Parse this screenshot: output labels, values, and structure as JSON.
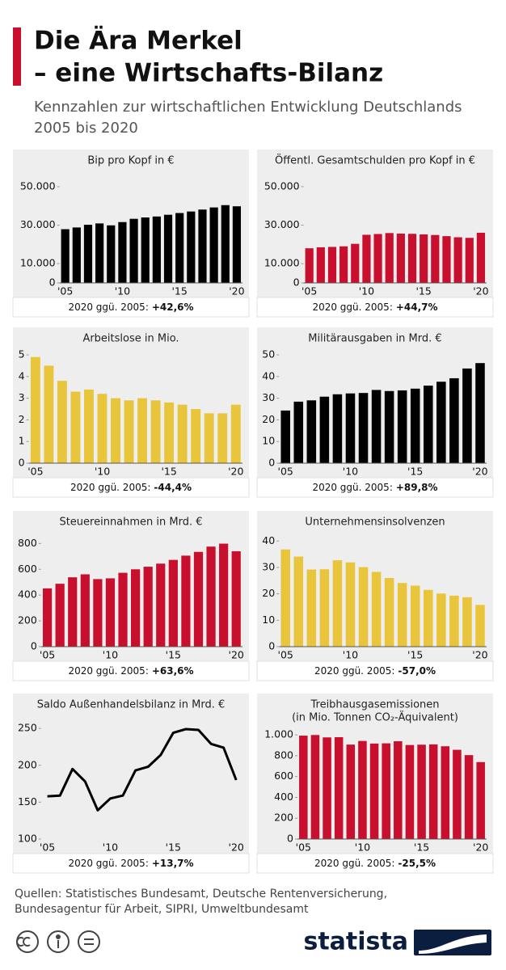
{
  "title": [
    "Die Ära Merkel",
    "– eine Wirtschafts-Bilanz"
  ],
  "subtitle": [
    "Kennzahlen zur wirtschaftlichen Entwicklung Deutschlands",
    "2005 bis 2020"
  ],
  "source": [
    "Quellen: Statistisches Bundesamt, Deutsche Rentenversicherung,",
    "Bundesagentur für Arbeit, SIPRI, Umweltbundesamt"
  ],
  "brand": "statista",
  "chart_data": [
    {
      "type": "bar",
      "title": "Bip pro Kopf in €",
      "color": "#000000",
      "categories": [
        "'05",
        null,
        null,
        null,
        null,
        "'10",
        null,
        null,
        null,
        null,
        "'15",
        null,
        null,
        null,
        null,
        "'20"
      ],
      "values": [
        27900,
        28800,
        30200,
        30900,
        29900,
        31600,
        33300,
        34000,
        34500,
        35400,
        36300,
        37100,
        38100,
        39200,
        40400,
        39800
      ],
      "ylim": [
        0,
        55000
      ],
      "yticks": [
        0,
        {
          "value": 10000,
          "label": "10.000"
        },
        {
          "value": 30000,
          "label": "30.000"
        },
        {
          "value": 50000,
          "label": "50.000"
        }
      ],
      "note_label": "2020 ggü. 2005:",
      "note_value": "+42,6%"
    },
    {
      "type": "bar",
      "title": "Öffentl. Gesamtschulden pro Kopf in €",
      "color": "#c8102e",
      "categories": [
        "'05",
        null,
        null,
        null,
        null,
        "'10",
        null,
        null,
        null,
        null,
        "'15",
        null,
        null,
        null,
        null,
        "'20"
      ],
      "values": [
        18000,
        18500,
        18700,
        19000,
        20300,
        25000,
        25400,
        25900,
        25600,
        25500,
        25200,
        24900,
        24300,
        23700,
        23400,
        26050
      ],
      "ylim": [
        0,
        55000
      ],
      "yticks": [
        0,
        {
          "value": 10000,
          "label": "10.000"
        },
        {
          "value": 30000,
          "label": "30.000"
        },
        {
          "value": 50000,
          "label": "50.000"
        }
      ],
      "note_label": "2020 ggü. 2005:",
      "note_value": "+44,7%"
    },
    {
      "type": "bar",
      "title": "Arbeitslose in Mio.",
      "color": "#e8c53a",
      "categories": [
        "'05",
        null,
        null,
        null,
        null,
        "'10",
        null,
        null,
        null,
        null,
        "'15",
        null,
        null,
        null,
        null,
        "'20"
      ],
      "values": [
        4.9,
        4.5,
        3.8,
        3.3,
        3.4,
        3.2,
        3.0,
        2.9,
        3.0,
        2.9,
        2.8,
        2.7,
        2.5,
        2.3,
        2.3,
        2.7
      ],
      "ylim": [
        0,
        5
      ],
      "yticks": [
        0,
        1,
        2,
        3,
        4,
        5
      ],
      "note_label": "2020 ggü. 2005:",
      "note_value": "-44,4%"
    },
    {
      "type": "bar",
      "title": "Militärausgaben in Mrd. €",
      "color": "#000000",
      "categories": [
        "'05",
        null,
        null,
        null,
        null,
        "'10",
        null,
        null,
        null,
        null,
        "'15",
        null,
        null,
        null,
        null,
        "'20"
      ],
      "values": [
        24.3,
        28.4,
        29.0,
        30.7,
        31.8,
        32.2,
        32.4,
        33.8,
        33.3,
        33.6,
        34.4,
        35.8,
        37.6,
        39.2,
        43.7,
        46.2
      ],
      "ylim": [
        0,
        50
      ],
      "yticks": [
        0,
        10,
        20,
        30,
        40,
        50
      ],
      "note_label": "2020 ggü. 2005:",
      "note_value": "+89,8%"
    },
    {
      "type": "bar",
      "title": "Steuereinnahmen in Mrd. €",
      "color": "#c8102e",
      "categories": [
        "'05",
        null,
        null,
        null,
        null,
        "'10",
        null,
        null,
        null,
        null,
        "'15",
        null,
        null,
        null,
        null,
        "'20"
      ],
      "values": [
        452,
        488,
        538,
        561,
        524,
        530,
        573,
        600,
        620,
        644,
        673,
        706,
        735,
        776,
        799,
        740
      ],
      "ylim": [
        0,
        840
      ],
      "yticks": [
        0,
        200,
        400,
        600,
        800
      ],
      "note_label": "2020 ggü. 2005:",
      "note_value": "+63,6%"
    },
    {
      "type": "bar",
      "title": "Unternehmensinsolvenzen",
      "color": "#e8c53a",
      "categories": [
        "'05",
        null,
        null,
        null,
        null,
        "'10",
        null,
        null,
        null,
        null,
        "'15",
        null,
        null,
        null,
        null,
        "'20"
      ],
      "values": [
        36.8,
        34.1,
        29.2,
        29.3,
        32.7,
        31.9,
        30.1,
        28.3,
        26.0,
        24.1,
        23.1,
        21.5,
        20.1,
        19.3,
        18.7,
        15.8
      ],
      "ylim": [
        0,
        41
      ],
      "yticks": [
        0,
        10,
        20,
        30,
        40
      ],
      "note_label": "2020 ggü. 2005:",
      "note_value": "-57,0%"
    },
    {
      "type": "line",
      "title": "Saldo Außenhandelsbilanz in Mrd. €",
      "color": "#000000",
      "categories": [
        "'05",
        null,
        null,
        null,
        null,
        "'10",
        null,
        null,
        null,
        null,
        "'15",
        null,
        null,
        null,
        null,
        "'20"
      ],
      "values": [
        158,
        159,
        195,
        178,
        139,
        155,
        159,
        193,
        198,
        214,
        244,
        249,
        248,
        229,
        224,
        180
      ],
      "ylim": [
        100,
        260
      ],
      "yticks": [
        100,
        150,
        200,
        250
      ],
      "note_label": "2020 ggü. 2005:",
      "note_value": "+13,7%"
    },
    {
      "type": "bar",
      "title": "Treibhausgasemissionen",
      "subtitle": "(in Mio. Tonnen CO₂-Äquivalent)",
      "color": "#c8102e",
      "categories": [
        "'05",
        null,
        null,
        null,
        null,
        "'10",
        null,
        null,
        null,
        null,
        "'15",
        null,
        null,
        null,
        null,
        "'20"
      ],
      "values": [
        993,
        999,
        976,
        978,
        907,
        942,
        917,
        919,
        939,
        903,
        906,
        909,
        891,
        857,
        806,
        739
      ],
      "ylim": [
        0,
        1040
      ],
      "yticks": [
        0,
        200,
        400,
        600,
        800,
        {
          "value": 1000,
          "label": "1.000"
        }
      ],
      "note_label": "2020 ggü. 2005:",
      "note_value": "-25,5%"
    }
  ]
}
